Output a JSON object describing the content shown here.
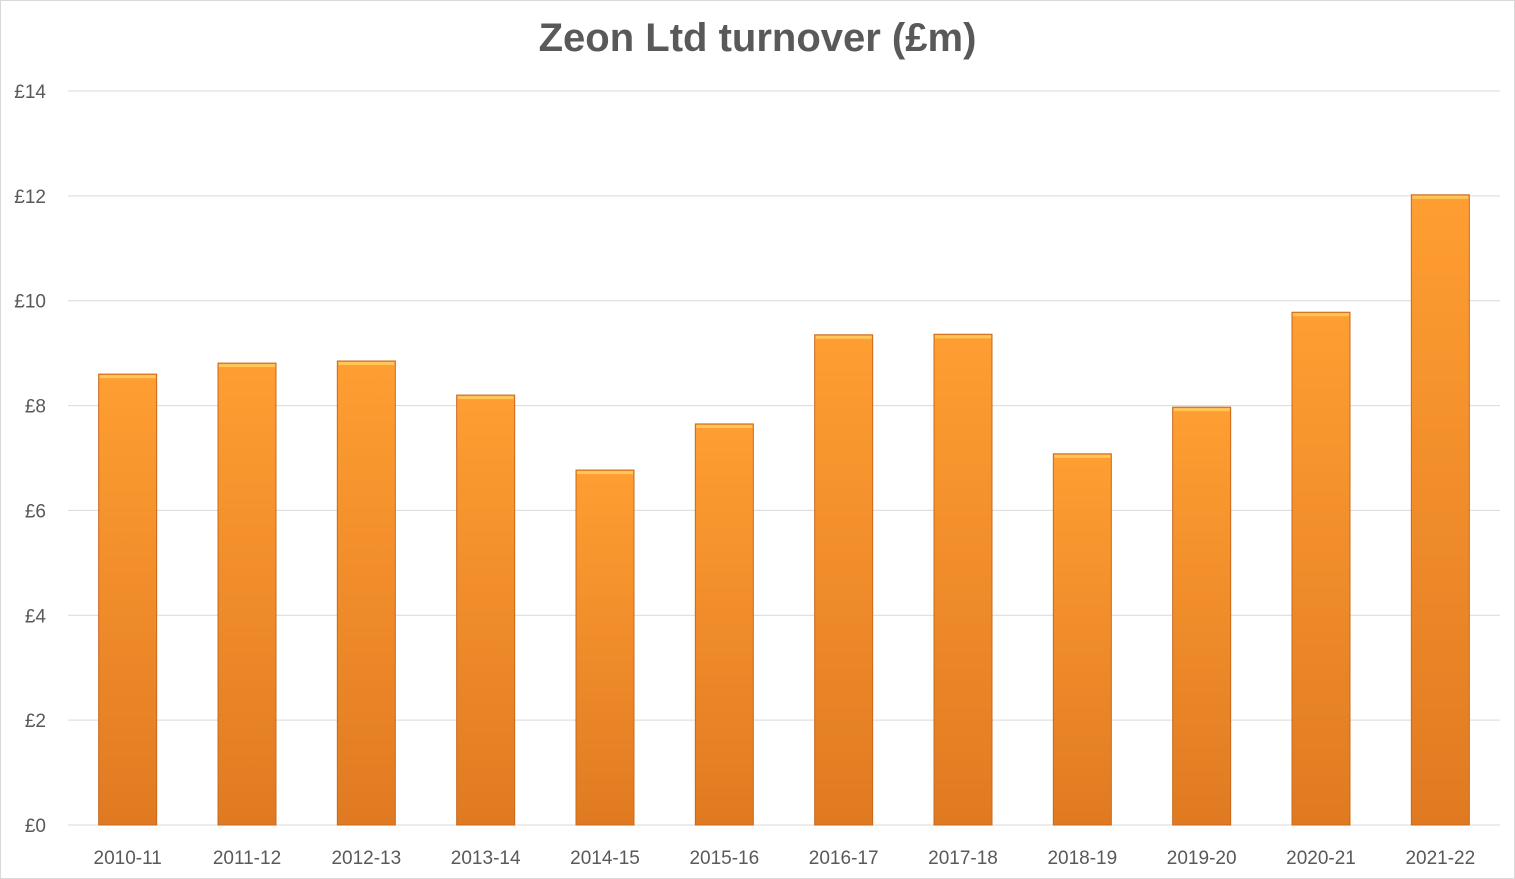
{
  "chart_data": {
    "type": "bar",
    "title": "Zeon Ltd turnover (£m)",
    "xlabel": "",
    "ylabel": "",
    "categories": [
      "2010-11",
      "2011-12",
      "2012-13",
      "2013-14",
      "2014-15",
      "2015-16",
      "2016-17",
      "2017-18",
      "2018-19",
      "2019-20",
      "2020-21",
      "2021-22"
    ],
    "values": [
      8.6,
      8.81,
      8.85,
      8.2,
      6.77,
      7.65,
      9.35,
      9.36,
      7.08,
      7.97,
      9.78,
      12.02
    ],
    "ylim": [
      0,
      14
    ],
    "yticks": [
      0,
      2,
      4,
      6,
      8,
      10,
      12,
      14
    ],
    "ytick_prefix": "£",
    "grid": true,
    "legend": "none",
    "colors": {
      "bar_top": "#ff9e32",
      "bar_bottom": "#e07a22",
      "bar_edge": "#c8681a",
      "grid": "#d9d9d9",
      "text": "#595959"
    }
  }
}
